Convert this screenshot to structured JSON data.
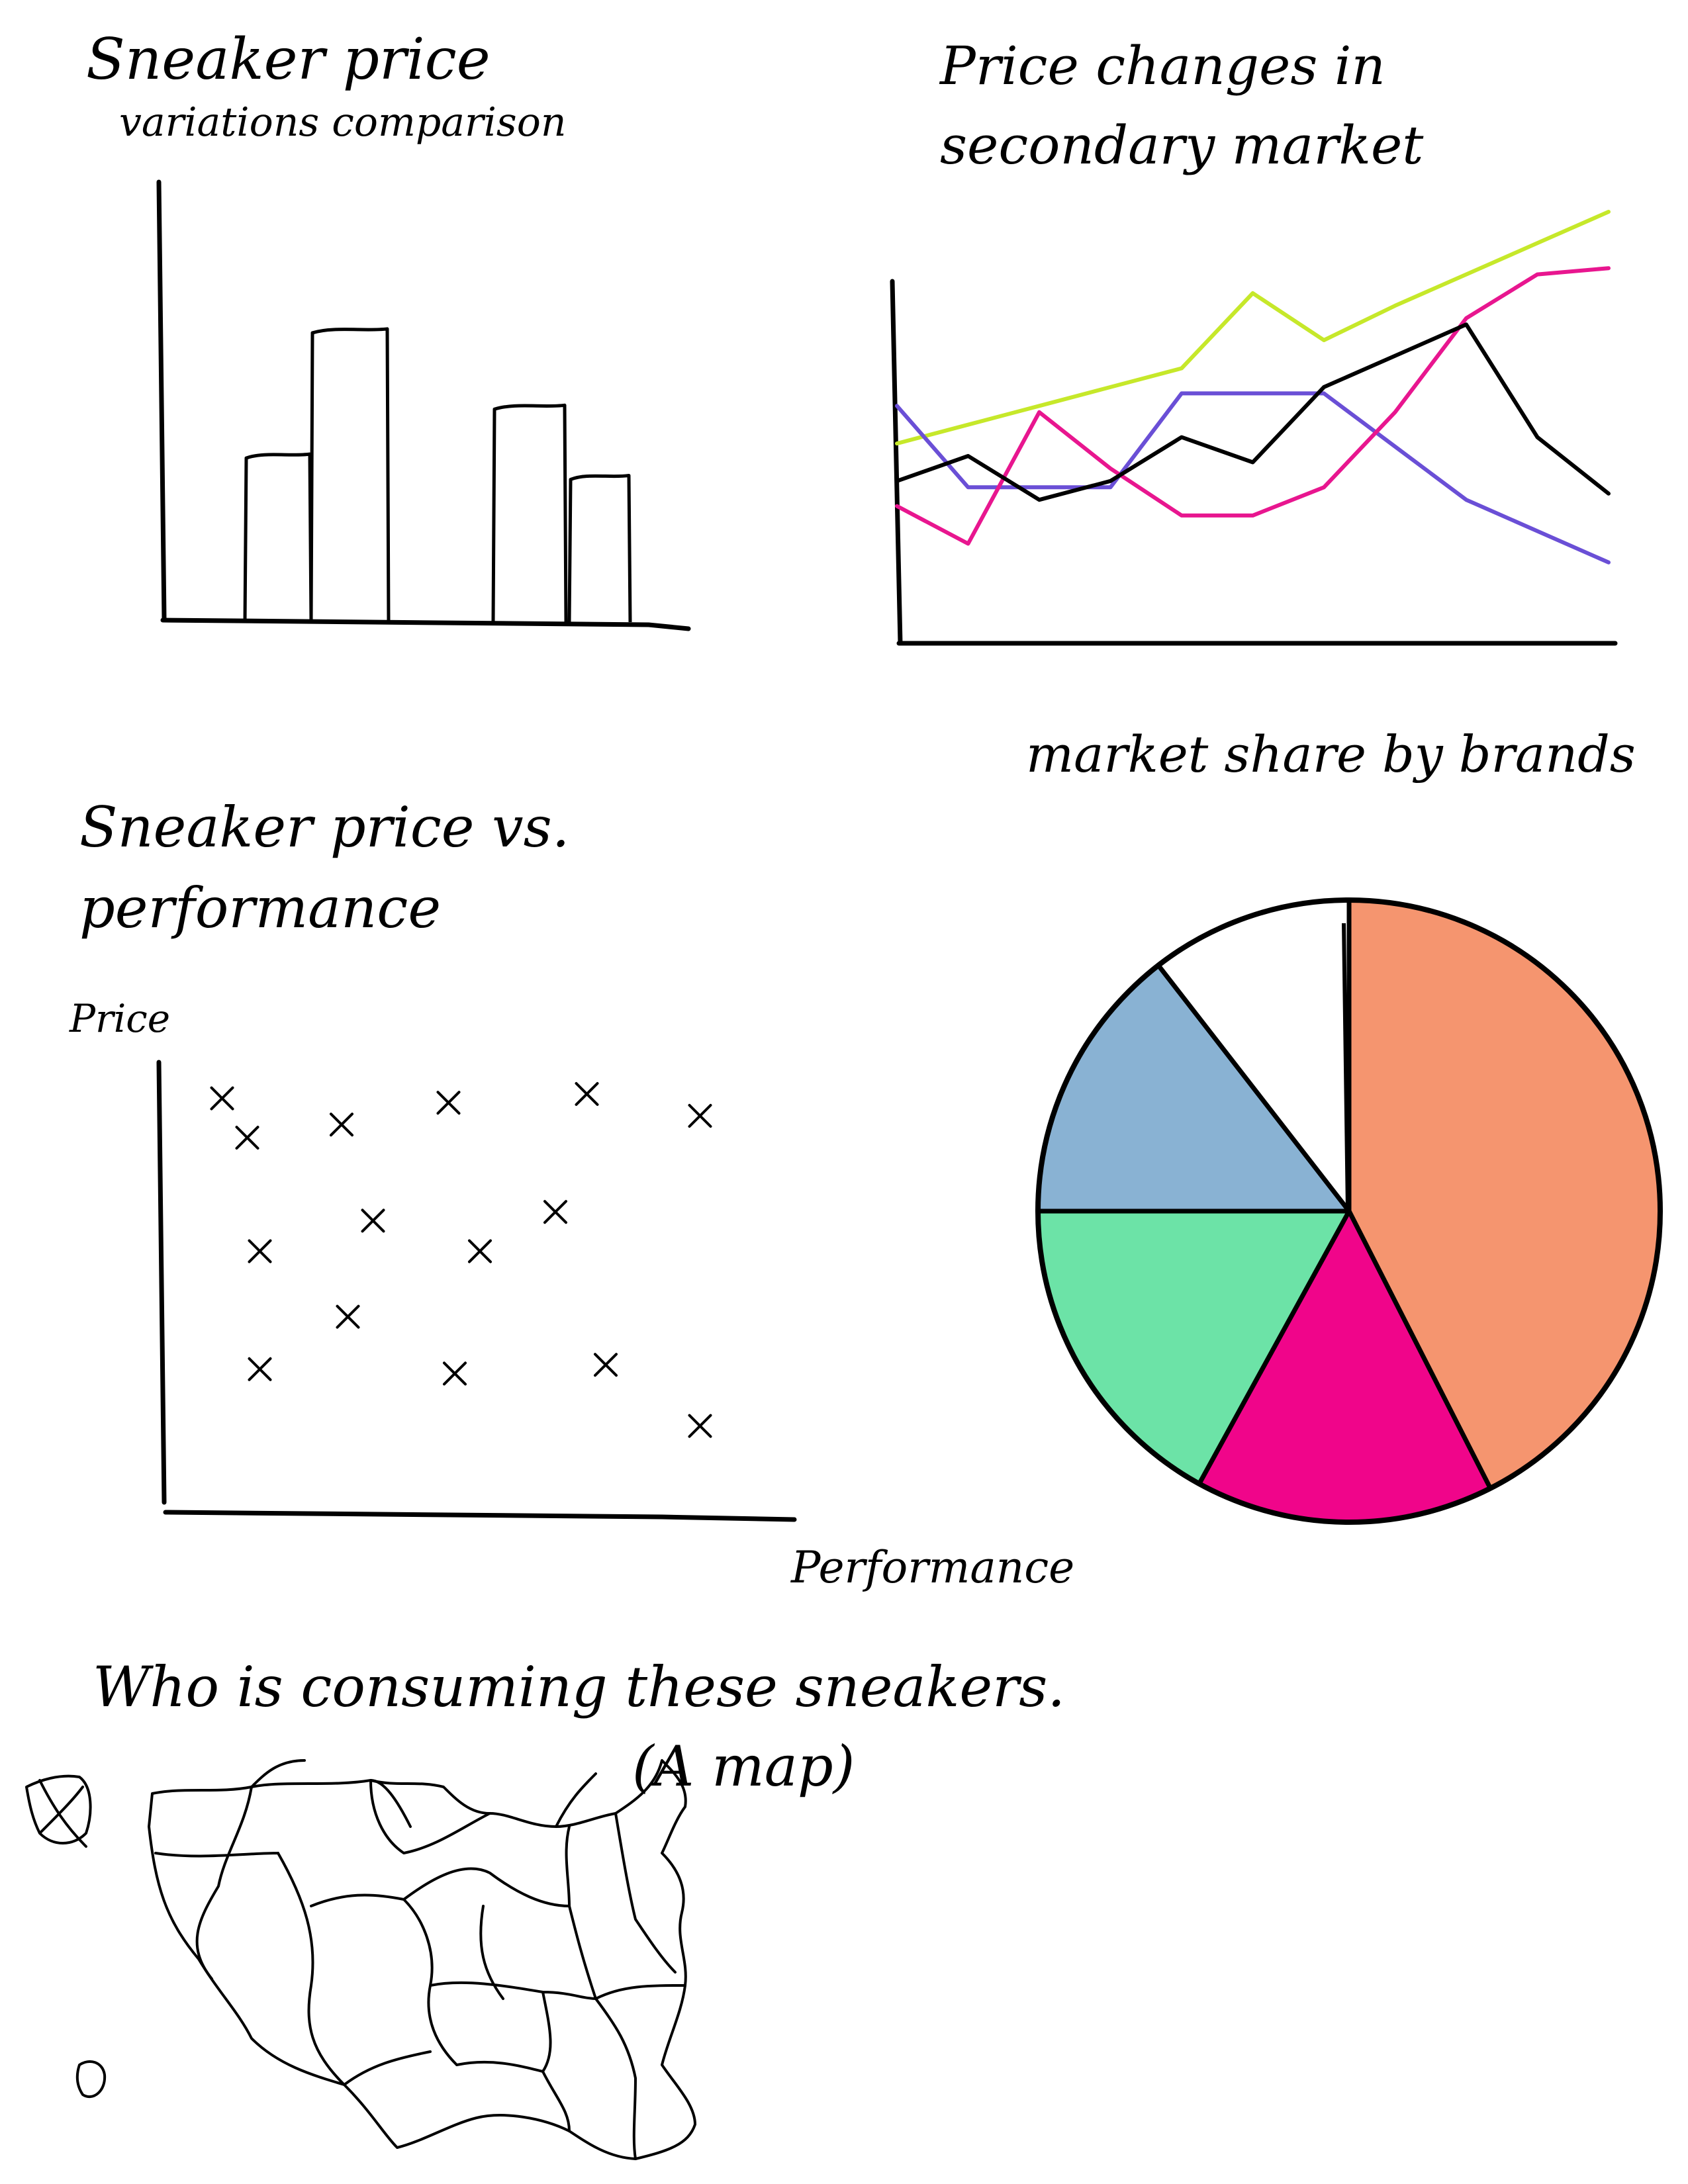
{
  "chart_data": [
    {
      "type": "bar",
      "title": "Sneaker price",
      "subtitle": "variations comparison",
      "categories": [
        "",
        "",
        "",
        ""
      ],
      "values": [
        0.55,
        0.96,
        0.71,
        0.48
      ],
      "ylim": [
        0,
        1.3
      ],
      "grid": false
    },
    {
      "type": "line",
      "title": "Price changes in secondary market",
      "x": [
        0,
        1,
        2,
        3,
        4,
        5,
        6,
        7,
        8,
        9,
        10
      ],
      "ylim": [
        0,
        1.3
      ],
      "grid": false,
      "series": [
        {
          "color": "#c6e82a",
          "values": [
            0.56,
            0.62,
            0.68,
            0.74,
            0.8,
            1.04,
            0.89,
            1.0,
            1.1,
            1.2,
            1.3
          ]
        },
        {
          "color": "#6a4fd6",
          "values": [
            0.68,
            0.42,
            0.42,
            0.42,
            0.72,
            0.72,
            0.72,
            0.55,
            0.38,
            0.28,
            0.18
          ]
        },
        {
          "color": "#e8168f",
          "values": [
            0.36,
            0.24,
            0.66,
            0.48,
            0.33,
            0.33,
            0.42,
            0.66,
            0.96,
            1.1,
            1.12
          ]
        },
        {
          "color": "#000000",
          "values": [
            0.44,
            0.52,
            0.38,
            0.44,
            0.58,
            0.5,
            0.74,
            0.84,
            0.94,
            0.58,
            0.4
          ]
        }
      ]
    },
    {
      "type": "scatter",
      "title": "Sneaker price vs. performance",
      "xlabel": "Performance",
      "ylabel": "Price",
      "xlim": [
        0,
        10
      ],
      "ylim": [
        0,
        10
      ],
      "grid": false,
      "points": [
        {
          "x": 0.9,
          "y": 9.4
        },
        {
          "x": 1.3,
          "y": 8.5
        },
        {
          "x": 2.8,
          "y": 8.8
        },
        {
          "x": 4.5,
          "y": 9.3
        },
        {
          "x": 6.7,
          "y": 9.5
        },
        {
          "x": 8.5,
          "y": 9.0
        },
        {
          "x": 3.3,
          "y": 6.6
        },
        {
          "x": 6.2,
          "y": 6.8
        },
        {
          "x": 1.5,
          "y": 5.9
        },
        {
          "x": 5.0,
          "y": 5.9
        },
        {
          "x": 2.9,
          "y": 4.4
        },
        {
          "x": 1.5,
          "y": 3.2
        },
        {
          "x": 4.6,
          "y": 3.1
        },
        {
          "x": 7.0,
          "y": 3.3
        },
        {
          "x": 8.5,
          "y": 1.9
        }
      ]
    },
    {
      "type": "pie",
      "title": "market share by brands",
      "values": [
        42.5,
        15.5,
        17.0,
        14.5,
        10.5
      ],
      "colors": [
        "#f5956f",
        "#f0058a",
        "#6ce3a7",
        "#89b2d3",
        "#ffffff"
      ]
    }
  ],
  "map": {
    "title": "Who is consuming these sneakers.",
    "subtitle": "(A map)"
  }
}
